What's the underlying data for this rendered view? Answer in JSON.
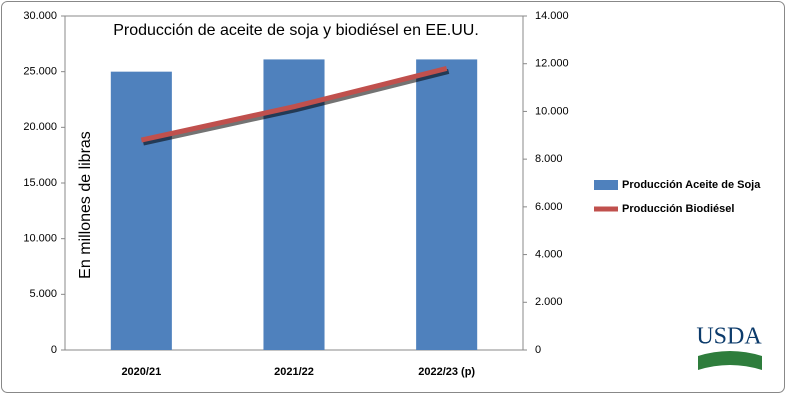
{
  "chart_data": {
    "type": "bar",
    "title": "Producción de aceite de soja y biodiésel en EE.UU.",
    "ylabel": "En millones de libras",
    "categories": [
      "2020/21",
      "2021/22",
      "2022/23 (p)"
    ],
    "series": [
      {
        "name": "Producción Aceite de Soja",
        "type": "bar",
        "color": "#4f81bd",
        "values": [
          25000,
          26100,
          26100
        ]
      },
      {
        "name": "Producción Biodiésel",
        "type": "line",
        "axis": "y2",
        "color": "#c0504d",
        "values": [
          8800,
          10200,
          11800
        ]
      }
    ],
    "ylim": [
      0,
      30000
    ],
    "yticks": [
      0,
      {
        "value": 5000,
        "label": "5.000"
      },
      {
        "value": 10000,
        "label": "10.000"
      },
      {
        "value": 15000,
        "label": "15.000"
      },
      {
        "value": 20000,
        "label": "20.000"
      },
      {
        "value": 25000,
        "label": "25.000"
      },
      {
        "value": 30000,
        "label": "30.000"
      }
    ],
    "y2lim": [
      0,
      14000
    ],
    "y2ticks": [
      0,
      {
        "value": 2000,
        "label": "2.000"
      },
      {
        "value": 4000,
        "label": "4.000"
      },
      {
        "value": 6000,
        "label": "6.000"
      },
      {
        "value": 8000,
        "label": "8.000"
      },
      {
        "value": 10000,
        "label": "10.000"
      },
      {
        "value": 12000,
        "label": "12.000"
      },
      {
        "value": 14000,
        "label": "14.000"
      }
    ],
    "legend": "right"
  },
  "logo": {
    "text": "USDA"
  }
}
